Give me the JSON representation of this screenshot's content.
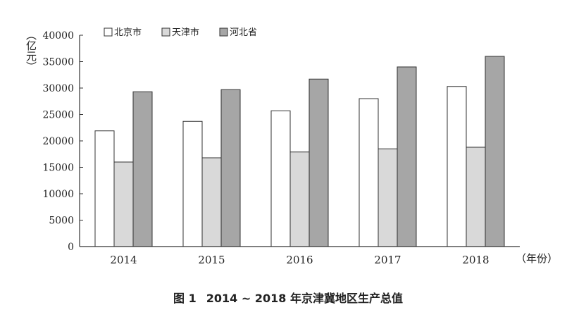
{
  "chart_data": {
    "type": "bar",
    "categories": [
      "2014",
      "2015",
      "2016",
      "2017",
      "2018"
    ],
    "series": [
      {
        "name": "北京市",
        "color": "#ffffff",
        "values": [
          21900,
          23700,
          25700,
          28000,
          30300
        ]
      },
      {
        "name": "天津市",
        "color": "#d9d9d9",
        "values": [
          16000,
          16800,
          17900,
          18500,
          18800
        ]
      },
      {
        "name": "河北省",
        "color": "#a6a6a6",
        "values": [
          29300,
          29700,
          31700,
          34000,
          36000
        ]
      }
    ],
    "ylim": [
      0,
      40000
    ],
    "yticks": [
      "0",
      "5000",
      "10000",
      "15000",
      "20000",
      "25000",
      "30000",
      "35000",
      "40000"
    ],
    "ylabel": "（亿元）",
    "xlabel": "（年份）",
    "legend_position": "top-left",
    "grid": false
  },
  "caption": {
    "figure_label": "图 1",
    "title": "2014 ~ 2018 年京津冀地区生产总值"
  }
}
